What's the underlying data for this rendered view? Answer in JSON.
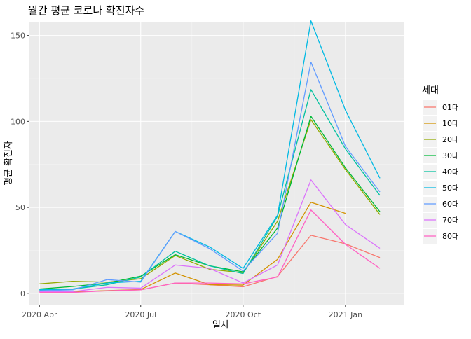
{
  "chart_data": {
    "type": "line",
    "title": "월간 평균 코로나 확진자수",
    "xlabel": "일자",
    "ylabel": "평균 확진자",
    "x_dates": [
      "2020-04-01",
      "2020-05-01",
      "2020-06-01",
      "2020-07-01",
      "2020-08-01",
      "2020-09-01",
      "2020-10-01",
      "2020-11-01",
      "2020-12-01",
      "2021-01-01",
      "2021-02-01"
    ],
    "xticks": [
      {
        "date": "2020-04-01",
        "label": "2020 Apr"
      },
      {
        "date": "2020-07-01",
        "label": "2020 Jul"
      },
      {
        "date": "2020-10-01",
        "label": "2020 Oct"
      },
      {
        "date": "2021-01-01",
        "label": "2021 Jan"
      }
    ],
    "yticks": [
      0,
      50,
      100,
      150
    ],
    "xlim": [
      "2020-03-23",
      "2021-02-23"
    ],
    "ylim": [
      -7,
      158
    ],
    "legend_title": "세대",
    "legend_position": "right",
    "grid": true,
    "series": [
      {
        "name": "01대",
        "color": "#F8766D",
        "values": [
          1.2,
          0.8,
          1.4,
          2.0,
          6.0,
          5.0,
          3.8,
          9.8,
          33.8,
          28.8,
          20.8
        ]
      },
      {
        "name": "10대",
        "color": "#D39200",
        "values": [
          1.0,
          0.8,
          1.6,
          2.2,
          11.8,
          5.0,
          4.8,
          19.8,
          53.0,
          46.5,
          null
        ]
      },
      {
        "name": "20대",
        "color": "#93AA00",
        "values": [
          5.5,
          7.0,
          6.5,
          8.5,
          22.0,
          14.0,
          12.0,
          42.0,
          101.0,
          72.0,
          45.8
        ]
      },
      {
        "name": "30대",
        "color": "#00BA38",
        "values": [
          2.5,
          4.0,
          6.0,
          10.0,
          22.5,
          16.0,
          12.5,
          38.0,
          103.0,
          73.0,
          47.5
        ]
      },
      {
        "name": "40대",
        "color": "#00C19F",
        "values": [
          2.0,
          2.5,
          5.0,
          9.5,
          24.5,
          16.0,
          11.5,
          45.0,
          118.5,
          84.0,
          57.0
        ]
      },
      {
        "name": "50대",
        "color": "#00B9E3",
        "values": [
          2.0,
          2.5,
          6.0,
          7.0,
          36.0,
          27.0,
          14.5,
          45.5,
          158.5,
          106.5,
          67.0
        ]
      },
      {
        "name": "60대",
        "color": "#619CFF",
        "values": [
          1.5,
          2.0,
          8.0,
          6.5,
          36.0,
          26.0,
          13.0,
          35.0,
          134.5,
          85.5,
          59.0
        ]
      },
      {
        "name": "70대",
        "color": "#DB72FB",
        "values": [
          1.0,
          1.0,
          3.5,
          3.0,
          16.5,
          14.5,
          6.0,
          16.5,
          66.0,
          40.0,
          26.2
        ]
      },
      {
        "name": "80대",
        "color": "#FF61C3",
        "values": [
          0.5,
          0.5,
          1.5,
          2.0,
          6.0,
          6.0,
          5.5,
          9.5,
          48.5,
          28.5,
          14.5
        ]
      }
    ]
  }
}
